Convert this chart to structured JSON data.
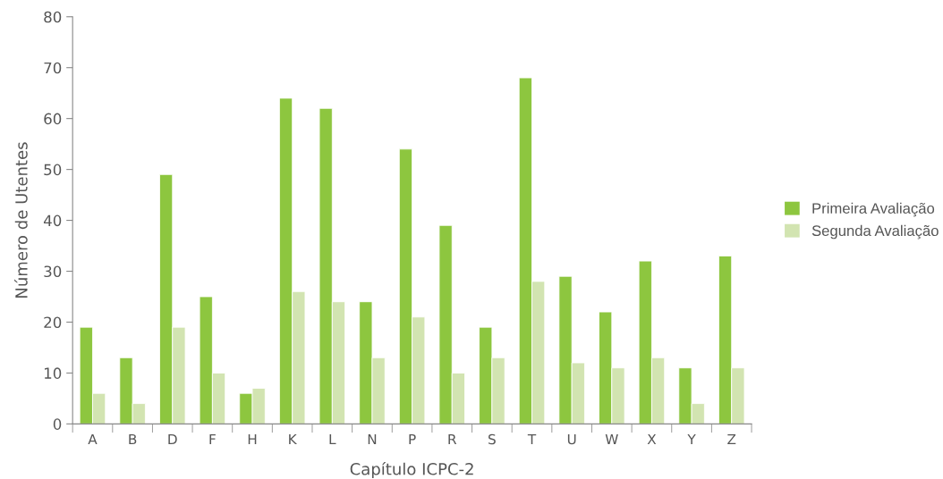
{
  "chart_data": {
    "type": "bar",
    "xlabel": "Capítulo ICPC-2",
    "ylabel": "Número de Utentes",
    "categories": [
      "A",
      "B",
      "D",
      "F",
      "H",
      "K",
      "L",
      "N",
      "P",
      "R",
      "S",
      "T",
      "U",
      "W",
      "X",
      "Y",
      "Z"
    ],
    "series": [
      {
        "name": "Primeira Avaliação",
        "color": "#8dc63f",
        "values": [
          19,
          13,
          49,
          25,
          6,
          64,
          62,
          24,
          54,
          39,
          19,
          68,
          29,
          22,
          32,
          11,
          33
        ]
      },
      {
        "name": "Segunda Avaliação",
        "color": "#d2e4b1",
        "values": [
          6,
          4,
          19,
          10,
          7,
          26,
          24,
          13,
          21,
          10,
          13,
          28,
          12,
          11,
          13,
          4,
          11
        ]
      }
    ],
    "ylim": [
      0,
      80
    ],
    "yticks": [
      0,
      10,
      20,
      30,
      40,
      50,
      60,
      70,
      80
    ],
    "grid": false,
    "legend": "right"
  }
}
